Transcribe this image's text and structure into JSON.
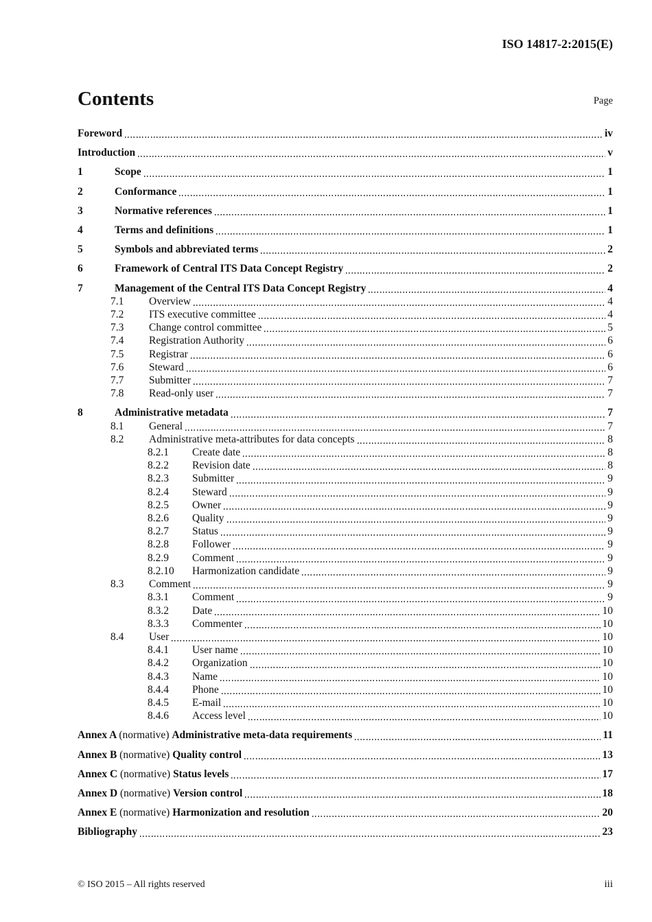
{
  "header": {
    "doc_ref": "ISO 14817-2:2015(E)"
  },
  "toc": {
    "title": "Contents",
    "page_label": "Page",
    "entries": [
      {
        "type": "plain",
        "level": 0,
        "bold": true,
        "number": "",
        "label": "Foreword",
        "page": "iv"
      },
      {
        "type": "plain",
        "level": 0,
        "bold": true,
        "number": "",
        "label": "Introduction",
        "page": "v"
      },
      {
        "type": "plain",
        "level": 0,
        "bold": true,
        "number": "1",
        "label": "Scope",
        "page": "1"
      },
      {
        "type": "plain",
        "level": 0,
        "bold": true,
        "number": "2",
        "label": "Conformance",
        "page": "1"
      },
      {
        "type": "plain",
        "level": 0,
        "bold": true,
        "number": "3",
        "label": "Normative references",
        "page": "1"
      },
      {
        "type": "plain",
        "level": 0,
        "bold": true,
        "number": "4",
        "label": "Terms and definitions",
        "page": "1"
      },
      {
        "type": "plain",
        "level": 0,
        "bold": true,
        "number": "5",
        "label": "Symbols and abbreviated terms",
        "page": "2"
      },
      {
        "type": "plain",
        "level": 0,
        "bold": true,
        "number": "6",
        "label": "Framework of Central ITS Data Concept Registry",
        "page": "2"
      },
      {
        "type": "plain",
        "level": 0,
        "bold": true,
        "number": "7",
        "label": "Management of the Central ITS Data Concept Registry",
        "page": "4"
      },
      {
        "type": "plain",
        "level": 1,
        "bold": false,
        "number": "7.1",
        "label": "Overview",
        "page": "4"
      },
      {
        "type": "plain",
        "level": 1,
        "bold": false,
        "number": "7.2",
        "label": "ITS executive committee",
        "page": "4"
      },
      {
        "type": "plain",
        "level": 1,
        "bold": false,
        "number": "7.3",
        "label": "Change control committee",
        "page": "5"
      },
      {
        "type": "plain",
        "level": 1,
        "bold": false,
        "number": "7.4",
        "label": "Registration Authority",
        "page": "6"
      },
      {
        "type": "plain",
        "level": 1,
        "bold": false,
        "number": "7.5",
        "label": "Registrar",
        "page": "6"
      },
      {
        "type": "plain",
        "level": 1,
        "bold": false,
        "number": "7.6",
        "label": "Steward",
        "page": "6"
      },
      {
        "type": "plain",
        "level": 1,
        "bold": false,
        "number": "7.7",
        "label": "Submitter",
        "page": "7"
      },
      {
        "type": "plain",
        "level": 1,
        "bold": false,
        "number": "7.8",
        "label": "Read-only user",
        "page": "7"
      },
      {
        "type": "plain",
        "level": 0,
        "bold": true,
        "number": "8",
        "label": "Administrative metadata",
        "page": "7"
      },
      {
        "type": "plain",
        "level": 1,
        "bold": false,
        "number": "8.1",
        "label": "General",
        "page": "7"
      },
      {
        "type": "plain",
        "level": 1,
        "bold": false,
        "number": "8.2",
        "label": "Administrative meta-attributes for data concepts",
        "page": "8"
      },
      {
        "type": "plain",
        "level": 2,
        "bold": false,
        "number": "8.2.1",
        "label": "Create date",
        "page": "8"
      },
      {
        "type": "plain",
        "level": 2,
        "bold": false,
        "number": "8.2.2",
        "label": "Revision date",
        "page": "8"
      },
      {
        "type": "plain",
        "level": 2,
        "bold": false,
        "number": "8.2.3",
        "label": "Submitter",
        "page": "9"
      },
      {
        "type": "plain",
        "level": 2,
        "bold": false,
        "number": "8.2.4",
        "label": "Steward",
        "page": "9"
      },
      {
        "type": "plain",
        "level": 2,
        "bold": false,
        "number": "8.2.5",
        "label": "Owner",
        "page": "9"
      },
      {
        "type": "plain",
        "level": 2,
        "bold": false,
        "number": "8.2.6",
        "label": "Quality",
        "page": "9"
      },
      {
        "type": "plain",
        "level": 2,
        "bold": false,
        "number": "8.2.7",
        "label": "Status",
        "page": "9"
      },
      {
        "type": "plain",
        "level": 2,
        "bold": false,
        "number": "8.2.8",
        "label": "Follower",
        "page": "9"
      },
      {
        "type": "plain",
        "level": 2,
        "bold": false,
        "number": "8.2.9",
        "label": "Comment",
        "page": "9"
      },
      {
        "type": "plain",
        "level": 2,
        "bold": false,
        "number": "8.2.10",
        "label": "Harmonization candidate",
        "page": "9"
      },
      {
        "type": "plain",
        "level": 1,
        "bold": false,
        "number": "8.3",
        "label": "Comment",
        "page": "9"
      },
      {
        "type": "plain",
        "level": 2,
        "bold": false,
        "number": "8.3.1",
        "label": "Comment",
        "page": "9"
      },
      {
        "type": "plain",
        "level": 2,
        "bold": false,
        "number": "8.3.2",
        "label": "Date",
        "page": "10"
      },
      {
        "type": "plain",
        "level": 2,
        "bold": false,
        "number": "8.3.3",
        "label": "Commenter",
        "page": "10"
      },
      {
        "type": "plain",
        "level": 1,
        "bold": false,
        "number": "8.4",
        "label": "User",
        "page": "10"
      },
      {
        "type": "plain",
        "level": 2,
        "bold": false,
        "number": "8.4.1",
        "label": "User name",
        "page": "10"
      },
      {
        "type": "plain",
        "level": 2,
        "bold": false,
        "number": "8.4.2",
        "label": "Organization",
        "page": "10"
      },
      {
        "type": "plain",
        "level": 2,
        "bold": false,
        "number": "8.4.3",
        "label": "Name",
        "page": "10"
      },
      {
        "type": "plain",
        "level": 2,
        "bold": false,
        "number": "8.4.4",
        "label": "Phone",
        "page": "10"
      },
      {
        "type": "plain",
        "level": 2,
        "bold": false,
        "number": "8.4.5",
        "label": "E-mail",
        "page": "10"
      },
      {
        "type": "plain",
        "level": 2,
        "bold": false,
        "number": "8.4.6",
        "label": "Access level",
        "page": "10"
      },
      {
        "type": "annex",
        "level": 0,
        "bold": true,
        "prefix": "Annex A",
        "note": "(normative)",
        "label": "Administrative meta-data requirements",
        "page": "11"
      },
      {
        "type": "annex",
        "level": 0,
        "bold": true,
        "prefix": "Annex B",
        "note": "(normative)",
        "label": "Quality control",
        "page": "13"
      },
      {
        "type": "annex",
        "level": 0,
        "bold": true,
        "prefix": "Annex C",
        "note": "(normative)",
        "label": "Status levels",
        "page": "17"
      },
      {
        "type": "annex",
        "level": 0,
        "bold": true,
        "prefix": "Annex D",
        "note": "(normative)",
        "label": "Version control",
        "page": "18"
      },
      {
        "type": "annex",
        "level": 0,
        "bold": true,
        "prefix": "Annex E",
        "note": "(normative)",
        "label": "Harmonization and resolution",
        "page": "20"
      },
      {
        "type": "plain",
        "level": 0,
        "bold": true,
        "number": "",
        "label": "Bibliography",
        "page": "23"
      }
    ]
  },
  "footer": {
    "copyright": "© ISO 2015 – All rights reserved",
    "page_number": "iii"
  }
}
